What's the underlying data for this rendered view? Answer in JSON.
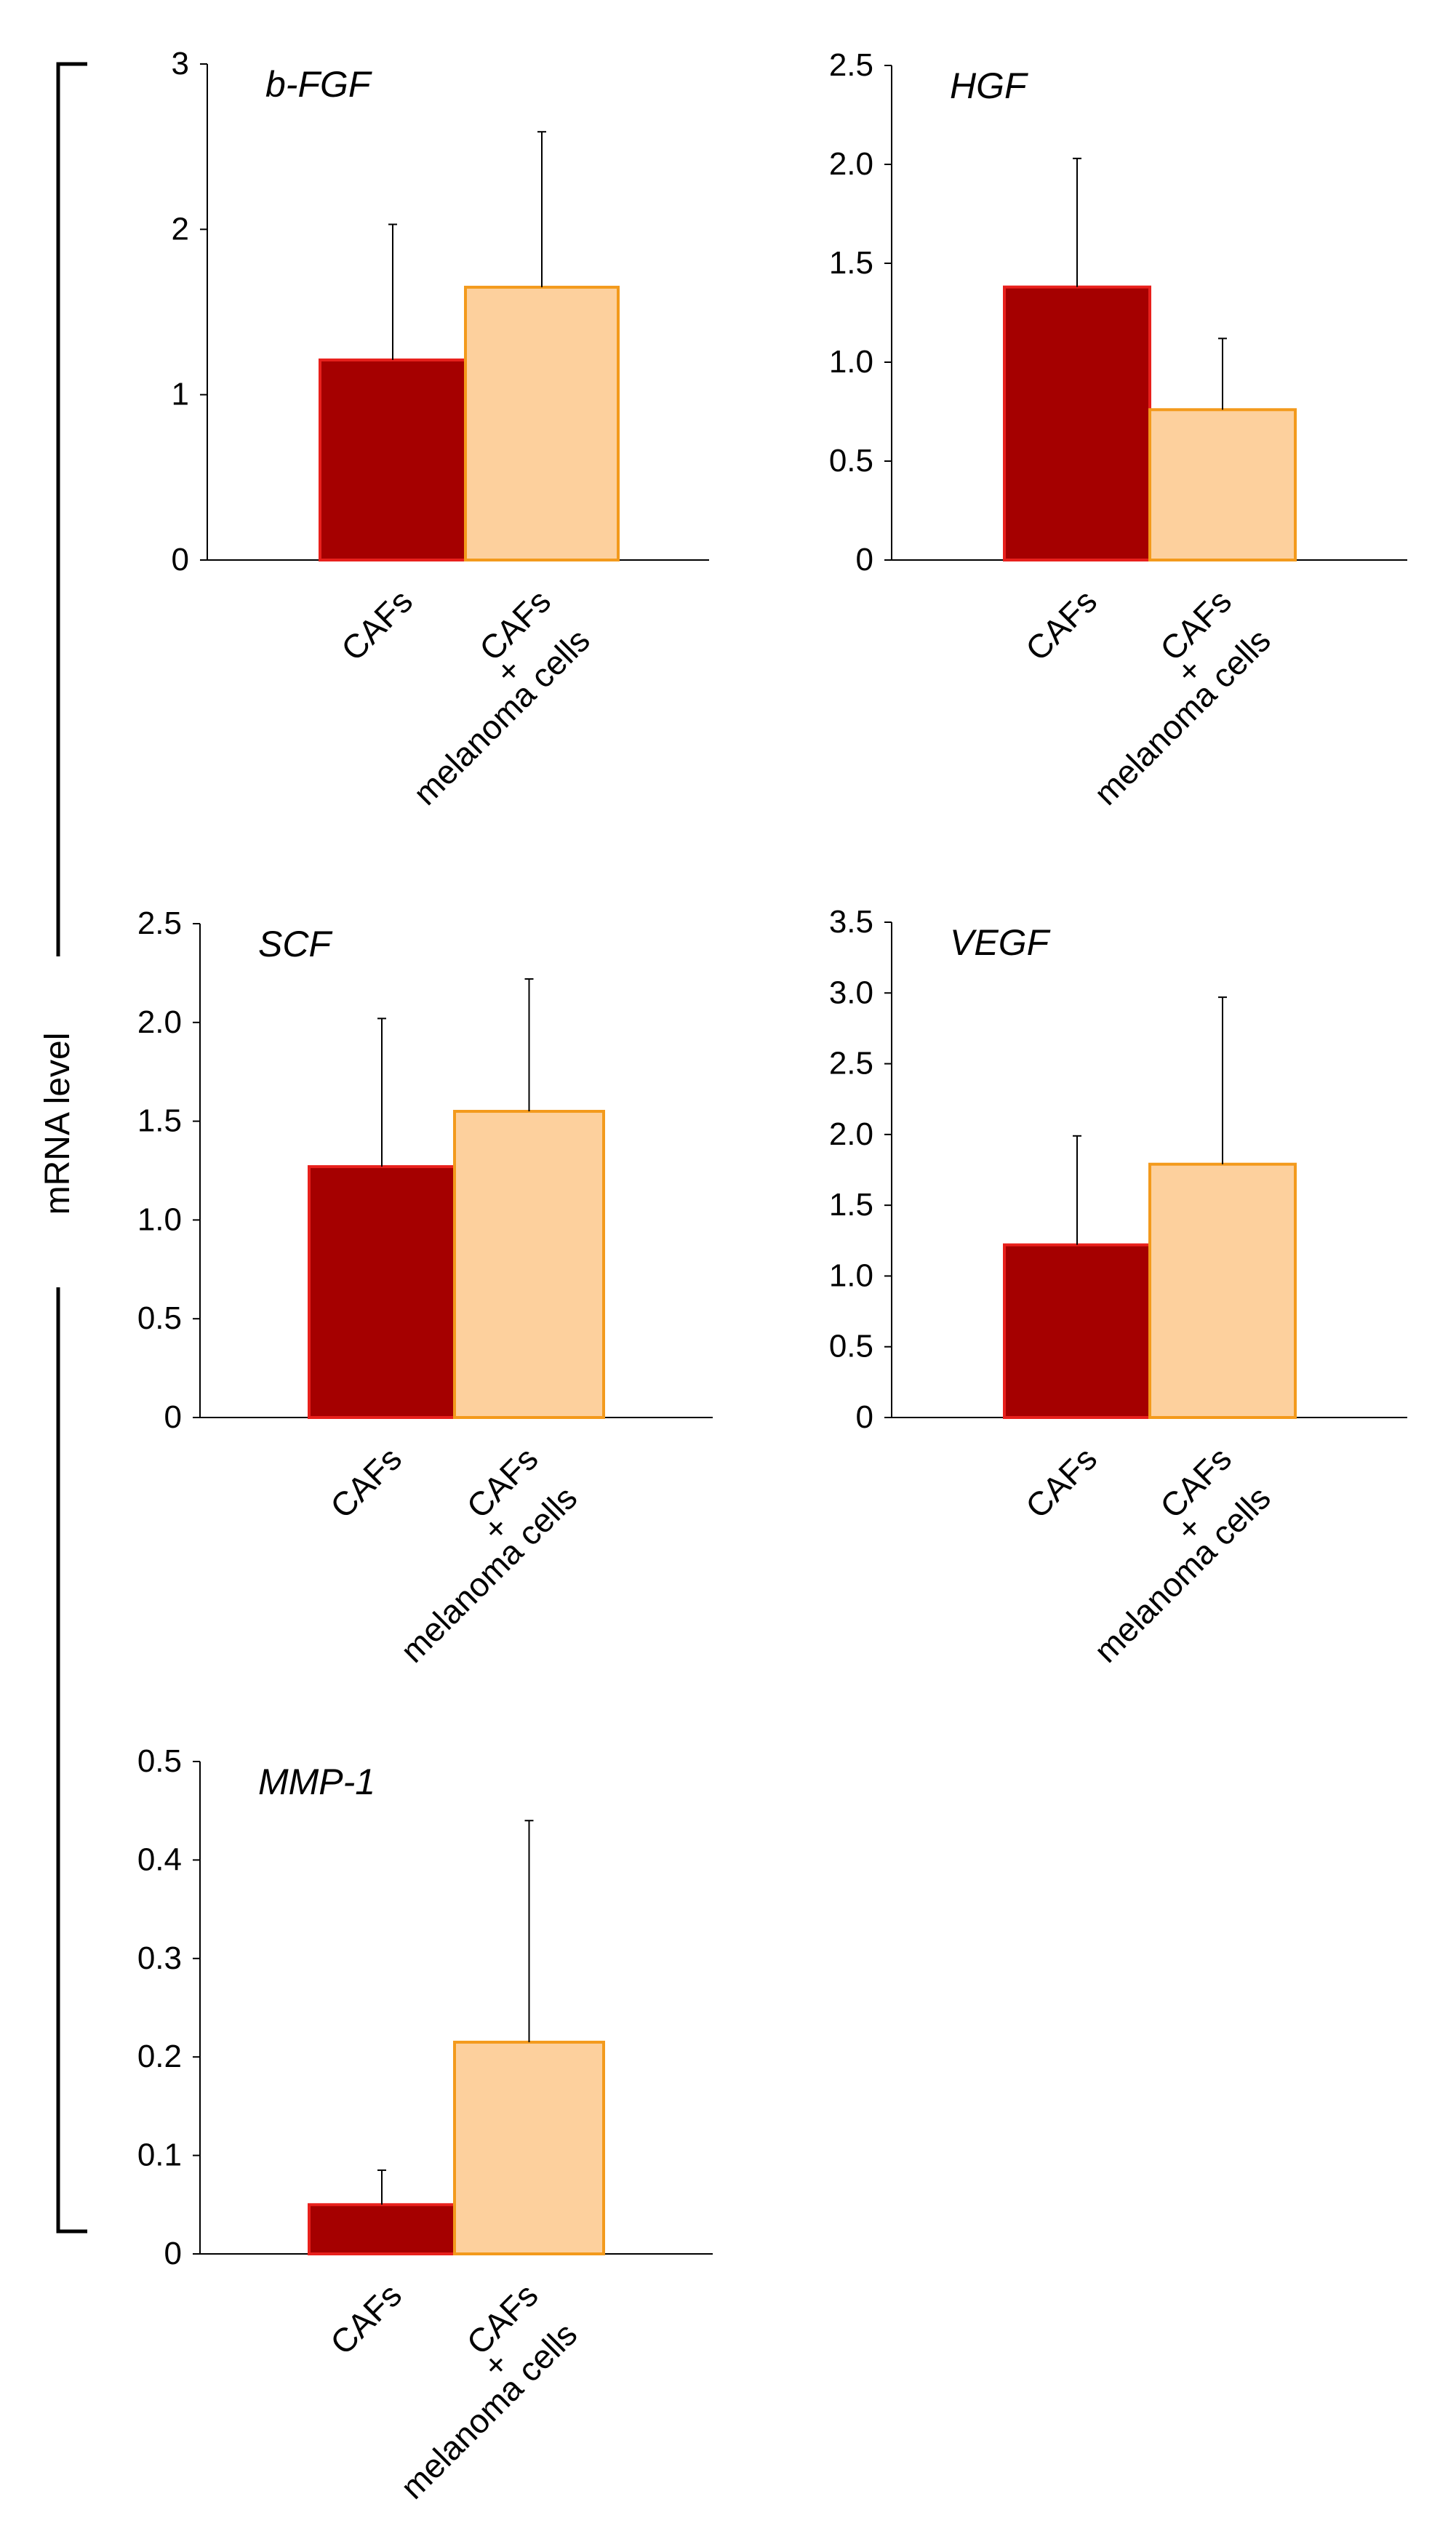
{
  "ylabel": "mRNA level",
  "colors": {
    "cafs_fill": "#a50000",
    "cafs_edge": "#e8201c",
    "mix_fill": "#fdd09d",
    "mix_edge": "#f39a1c"
  },
  "chart_data": [
    {
      "type": "bar",
      "title": "b-FGF",
      "categories": [
        "CAFs",
        "CAFs\n+\nmelanoma cells"
      ],
      "values": [
        1.21,
        1.65
      ],
      "error_upper": [
        2.03,
        2.59
      ],
      "ylim": [
        0,
        3
      ],
      "yticks": [
        0,
        1,
        2,
        3
      ],
      "yticklabels": [
        "0",
        "1",
        "2",
        "3"
      ]
    },
    {
      "type": "bar",
      "title": "HGF",
      "categories": [
        "CAFs",
        "CAFs\n+\nmelanoma cells"
      ],
      "values": [
        1.38,
        0.76
      ],
      "error_upper": [
        2.03,
        1.12
      ],
      "ylim": [
        0,
        2.5
      ],
      "yticks": [
        0,
        0.5,
        1,
        1.5,
        2,
        2.5
      ],
      "yticklabels": [
        "0",
        "0.5",
        "1.0",
        "1.5",
        "2.0",
        "2.5"
      ]
    },
    {
      "type": "bar",
      "title": "SCF",
      "categories": [
        "CAFs",
        "CAFs\n+\nmelanoma cells"
      ],
      "values": [
        1.27,
        1.55
      ],
      "error_upper": [
        2.02,
        2.22
      ],
      "ylim": [
        0,
        2.5
      ],
      "yticks": [
        0,
        0.5,
        1,
        1.5,
        2,
        2.5
      ],
      "yticklabels": [
        "0",
        "0.5",
        "1.0",
        "1.5",
        "2.0",
        "2.5"
      ]
    },
    {
      "type": "bar",
      "title": "VEGF",
      "categories": [
        "CAFs",
        "CAFs\n+\nmelanoma cells"
      ],
      "values": [
        1.22,
        1.79
      ],
      "error_upper": [
        1.99,
        2.97
      ],
      "ylim": [
        0,
        3.5
      ],
      "yticks": [
        0,
        0.5,
        1,
        1.5,
        2,
        2.5,
        3,
        3.5
      ],
      "yticklabels": [
        "0",
        "0.5",
        "1.0",
        "1.5",
        "2.0",
        "2.5",
        "3.0",
        "3.5"
      ]
    },
    {
      "type": "bar",
      "title": "MMP-1",
      "categories": [
        "CAFs",
        "CAFs\n+\nmelanoma cells"
      ],
      "values": [
        0.05,
        0.215
      ],
      "error_upper": [
        0.085,
        0.44
      ],
      "ylim": [
        0,
        0.5
      ],
      "yticks": [
        0,
        0.1,
        0.2,
        0.3,
        0.4,
        0.5
      ],
      "yticklabels": [
        "0",
        "0.1",
        "0.2",
        "0.3",
        "0.4",
        "0.5"
      ]
    }
  ]
}
